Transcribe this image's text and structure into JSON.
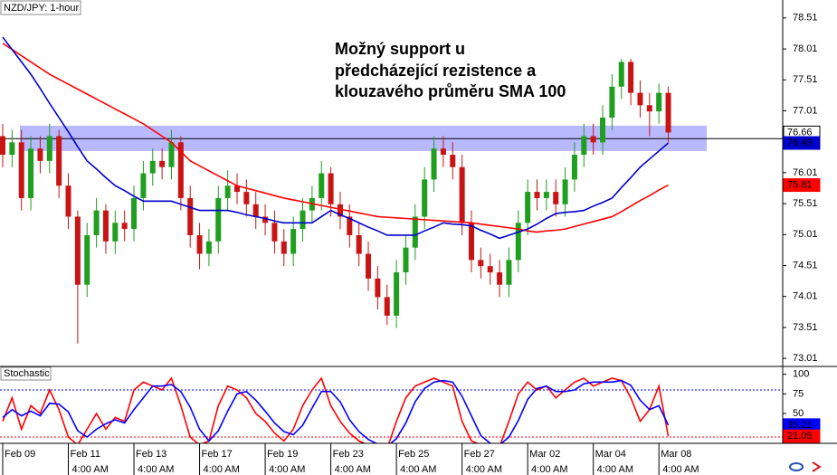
{
  "chart_data": [
    {
      "type": "candlestick",
      "title": "NZD/JPY: 1-hour",
      "annotation": [
        "Možný support u",
        "předcházející rezistence a",
        "klouzavého průměru SMA 100"
      ],
      "categories": [
        "Feb 09",
        null,
        null,
        null,
        null,
        null,
        null,
        "Feb 11",
        null,
        null,
        null,
        null,
        null,
        null,
        "Feb 13",
        null,
        null,
        null,
        null,
        null,
        null,
        "Feb 17",
        null,
        null,
        null,
        null,
        null,
        null,
        "Feb 19",
        null,
        null,
        null,
        null,
        null,
        null,
        "Feb 23",
        null,
        null,
        null,
        null,
        null,
        null,
        "Feb 25",
        null,
        null,
        null,
        null,
        null,
        null,
        "Feb 27",
        null,
        null,
        null,
        null,
        null,
        null,
        "Mar 02",
        null,
        null,
        null,
        null,
        null,
        null,
        "Mar 04",
        null,
        null,
        null,
        null,
        null,
        null,
        "Mar 08",
        null
      ],
      "times": [
        null,
        null,
        null,
        null,
        null,
        null,
        null,
        "4:00 AM",
        null,
        null,
        null,
        null,
        null,
        null,
        "4:00 AM",
        null,
        null,
        null,
        null,
        null,
        null,
        "4:00 AM",
        null,
        null,
        null,
        null,
        null,
        null,
        "4:00 AM",
        null,
        null,
        null,
        null,
        null,
        null,
        "4:00 AM",
        null,
        null,
        null,
        null,
        null,
        null,
        "4:00 AM",
        null,
        null,
        null,
        null,
        null,
        null,
        "4:00 AM",
        null,
        null,
        null,
        null,
        null,
        null,
        "4:00 AM",
        null,
        null,
        null,
        null,
        null,
        null,
        "4:00 AM",
        null,
        null,
        null,
        null,
        null,
        null,
        "4:00 AM",
        null
      ],
      "open": [
        76.6,
        76.3,
        76.5,
        75.6,
        76.4,
        76.2,
        76.6,
        75.8,
        75.3,
        74.2,
        75.0,
        75.4,
        74.9,
        75.2,
        75.1,
        75.6,
        76.0,
        76.2,
        76.1,
        76.5,
        75.6,
        75.0,
        74.7,
        74.9,
        75.6,
        75.8,
        75.7,
        75.5,
        75.3,
        75.2,
        74.9,
        74.7,
        75.1,
        75.4,
        75.6,
        76.0,
        75.5,
        75.3,
        75.0,
        74.7,
        74.3,
        74.0,
        73.7,
        74.4,
        74.8,
        75.3,
        75.9,
        76.4,
        76.3,
        76.1,
        75.2,
        74.6,
        74.5,
        74.4,
        74.2,
        74.6,
        75.2,
        75.7,
        75.6,
        75.7,
        75.5,
        75.9,
        76.3,
        76.6,
        76.5,
        76.9,
        77.4,
        77.8,
        77.3,
        77.1,
        77.0,
        77.3
      ],
      "high": [
        76.8,
        76.7,
        76.7,
        76.6,
        76.6,
        76.8,
        76.7,
        76.0,
        75.4,
        75.2,
        75.6,
        75.5,
        75.4,
        75.4,
        75.8,
        76.2,
        76.4,
        76.4,
        76.7,
        76.6,
        75.8,
        75.2,
        75.1,
        75.8,
        76.05,
        76.0,
        75.9,
        75.7,
        75.5,
        75.4,
        75.1,
        75.3,
        75.6,
        75.8,
        76.2,
        76.1,
        75.7,
        75.5,
        75.2,
        74.9,
        74.5,
        74.2,
        74.6,
        75.0,
        75.5,
        76.1,
        76.6,
        76.6,
        76.5,
        76.3,
        75.4,
        74.8,
        74.7,
        74.6,
        74.8,
        75.4,
        75.9,
        75.9,
        75.9,
        75.9,
        76.1,
        76.5,
        76.8,
        76.8,
        77.1,
        77.6,
        77.85,
        77.85,
        77.5,
        77.3,
        77.45,
        77.4
      ],
      "low": [
        76.1,
        76.1,
        75.4,
        75.4,
        76.0,
        76.0,
        75.6,
        75.1,
        73.25,
        74.0,
        74.8,
        74.7,
        74.7,
        74.9,
        74.9,
        75.4,
        75.8,
        75.9,
        75.9,
        75.4,
        74.8,
        74.45,
        74.5,
        74.7,
        75.4,
        75.5,
        75.3,
        75.1,
        75.0,
        74.7,
        74.5,
        74.5,
        74.9,
        75.2,
        75.4,
        75.3,
        75.1,
        74.8,
        74.5,
        74.1,
        73.8,
        73.55,
        73.5,
        74.2,
        74.6,
        75.1,
        75.7,
        76.1,
        75.9,
        75.0,
        74.4,
        74.3,
        74.2,
        74.0,
        74.0,
        74.4,
        75.0,
        75.4,
        75.4,
        75.3,
        75.3,
        75.7,
        76.1,
        76.3,
        76.3,
        76.7,
        77.2,
        77.1,
        76.9,
        76.6,
        76.8,
        76.5
      ],
      "close": [
        76.3,
        76.5,
        75.6,
        76.4,
        76.2,
        76.6,
        75.8,
        75.3,
        74.2,
        75.0,
        75.4,
        74.9,
        75.2,
        75.1,
        75.6,
        76.0,
        76.2,
        76.1,
        76.5,
        75.6,
        75.0,
        74.7,
        74.9,
        75.6,
        75.8,
        75.7,
        75.5,
        75.3,
        75.2,
        74.9,
        74.7,
        75.1,
        75.4,
        75.6,
        76.0,
        75.5,
        75.3,
        75.0,
        74.7,
        74.3,
        74.0,
        73.7,
        74.4,
        74.8,
        75.3,
        75.9,
        76.4,
        76.3,
        76.1,
        75.2,
        74.6,
        74.5,
        74.4,
        74.2,
        74.6,
        75.2,
        75.7,
        75.6,
        75.7,
        75.5,
        75.9,
        76.3,
        76.6,
        76.5,
        76.9,
        77.4,
        77.8,
        77.3,
        77.1,
        77.0,
        77.3,
        76.66
      ],
      "up_color": "#1f9e1f",
      "down_color": "#c81414",
      "series": [
        {
          "color": "#ff0000",
          "values": [
            78.1,
            78.0,
            77.9,
            77.8,
            77.7,
            77.6,
            77.52,
            77.44,
            77.36,
            77.28,
            77.2,
            77.12,
            77.04,
            76.96,
            76.88,
            76.8,
            76.7,
            76.6,
            76.5,
            76.35,
            76.2,
            76.12,
            76.04,
            75.96,
            75.88,
            75.8,
            75.76,
            75.72,
            75.68,
            75.64,
            75.6,
            75.57,
            75.54,
            75.51,
            75.48,
            75.45,
            75.42,
            75.39,
            75.36,
            75.33,
            75.3,
            75.29,
            75.28,
            75.27,
            75.26,
            75.25,
            75.24,
            75.23,
            75.22,
            75.21,
            75.2,
            75.18,
            75.16,
            75.14,
            75.12,
            75.1,
            75.07,
            75.05,
            75.07,
            75.08,
            75.1,
            75.14,
            75.18,
            75.22,
            75.26,
            75.3,
            75.38,
            75.47,
            75.56,
            75.64,
            75.73,
            75.81
          ]
        },
        {
          "color": "#0000cc",
          "values": [
            78.2,
            78.0,
            77.8,
            77.6,
            77.37,
            77.13,
            76.9,
            76.67,
            76.43,
            76.2,
            76.07,
            75.93,
            75.8,
            75.72,
            75.63,
            75.55,
            75.55,
            75.55,
            75.55,
            75.5,
            75.45,
            75.4,
            75.4,
            75.4,
            75.4,
            75.37,
            75.33,
            75.3,
            75.27,
            75.23,
            75.2,
            75.2,
            75.2,
            75.2,
            75.3,
            75.4,
            75.33,
            75.27,
            75.2,
            75.13,
            75.07,
            75.0,
            75.0,
            75.0,
            75.0,
            75.07,
            75.13,
            75.2,
            75.18,
            75.17,
            75.15,
            75.08,
            75.02,
            74.95,
            75.0,
            75.05,
            75.1,
            75.18,
            75.27,
            75.35,
            75.37,
            75.38,
            75.4,
            75.47,
            75.53,
            75.6,
            75.77,
            75.93,
            76.1,
            76.23,
            76.36,
            76.49
          ]
        }
      ],
      "zone": [
        76.36,
        76.77
      ],
      "zone_color": "#8080ff",
      "level": 76.56,
      "ylim": [
        72.88,
        78.8
      ],
      "yticks": [
        73.01,
        73.51,
        74.01,
        74.51,
        75.01,
        75.51,
        76.01,
        76.51,
        77.01,
        77.51,
        78.01,
        78.51
      ]
    },
    {
      "type": "line",
      "title": "Stochastic",
      "series": [
        {
          "color": "#ff0000",
          "values": [
            40,
            70,
            30,
            60,
            50,
            80,
            55,
            20,
            10,
            30,
            50,
            30,
            45,
            40,
            80,
            90,
            85,
            80,
            95,
            60,
            20,
            10,
            15,
            60,
            85,
            80,
            70,
            50,
            40,
            25,
            15,
            30,
            60,
            80,
            95,
            60,
            40,
            25,
            15,
            10,
            8,
            5,
            40,
            70,
            85,
            90,
            95,
            90,
            85,
            40,
            15,
            10,
            12,
            8,
            40,
            75,
            90,
            80,
            85,
            70,
            80,
            90,
            95,
            85,
            90,
            95,
            92,
            70,
            40,
            55,
            85,
            21.05
          ]
        },
        {
          "color": "#0000ff",
          "values": [
            45,
            55,
            47,
            53,
            47,
            63,
            62,
            52,
            28,
            20,
            30,
            37,
            42,
            38,
            55,
            70,
            85,
            85,
            87,
            78,
            58,
            30,
            15,
            28,
            53,
            75,
            78,
            67,
            53,
            38,
            27,
            23,
            35,
            57,
            78,
            78,
            65,
            42,
            27,
            17,
            11,
            8,
            18,
            38,
            65,
            82,
            90,
            92,
            90,
            72,
            47,
            22,
            12,
            10,
            20,
            41,
            68,
            82,
            85,
            78,
            78,
            80,
            88,
            90,
            90,
            90,
            92,
            86,
            67,
            55,
            60,
            35.21
          ]
        }
      ],
      "levels": [
        {
          "value": 80,
          "color": "#0000ff"
        },
        {
          "value": 20,
          "color": "#ff0000"
        }
      ],
      "ylim": [
        12,
        110
      ],
      "yticks": [
        25,
        50,
        75,
        100
      ]
    }
  ]
}
